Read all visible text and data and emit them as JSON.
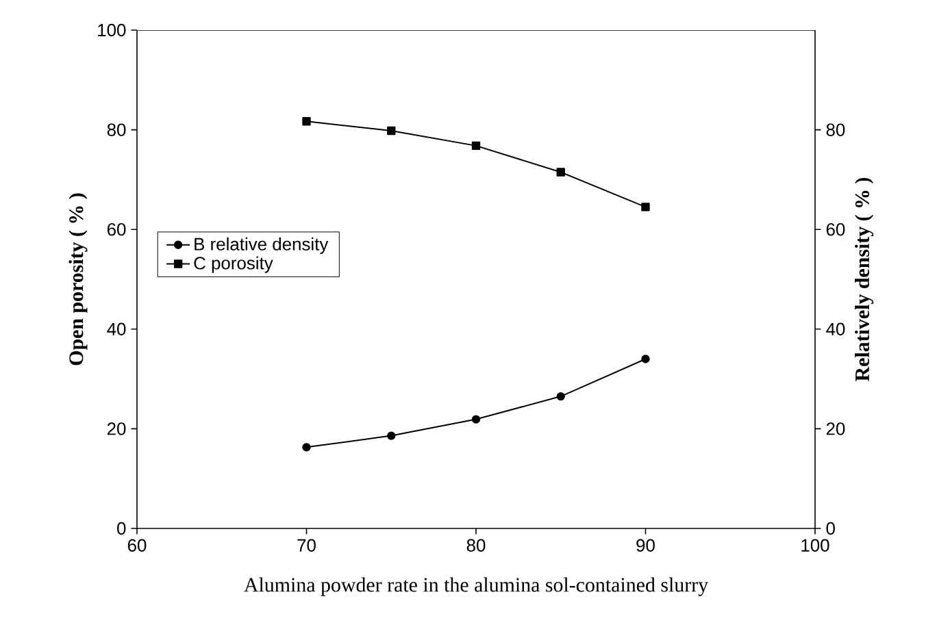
{
  "chart_data": {
    "type": "line",
    "xlabel": "Alumina powder rate in the alumina sol-contained slurry",
    "ylabel": "Open porosity ( % )",
    "y2label": "Relatively density ( % )",
    "x": [
      70,
      75,
      80,
      85,
      90
    ],
    "xlim": [
      60,
      100
    ],
    "xticks": [
      60,
      70,
      80,
      90,
      100
    ],
    "ylim": [
      0,
      100
    ],
    "yticks": [
      0,
      20,
      40,
      60,
      80,
      100
    ],
    "y2lim": [
      0,
      100
    ],
    "y2ticks": [
      0,
      20,
      40,
      60,
      80
    ],
    "legend": "left",
    "line_style": "solid",
    "series": [
      {
        "name": "B  relative density",
        "color": "#000000",
        "marker": "circle",
        "axis": "y2",
        "values": [
          16.3,
          18.6,
          21.9,
          26.5,
          34.0
        ]
      },
      {
        "name": "C  porosity",
        "color": "#000000",
        "marker": "square",
        "values": [
          81.7,
          79.8,
          76.8,
          71.5,
          64.5
        ]
      }
    ]
  }
}
